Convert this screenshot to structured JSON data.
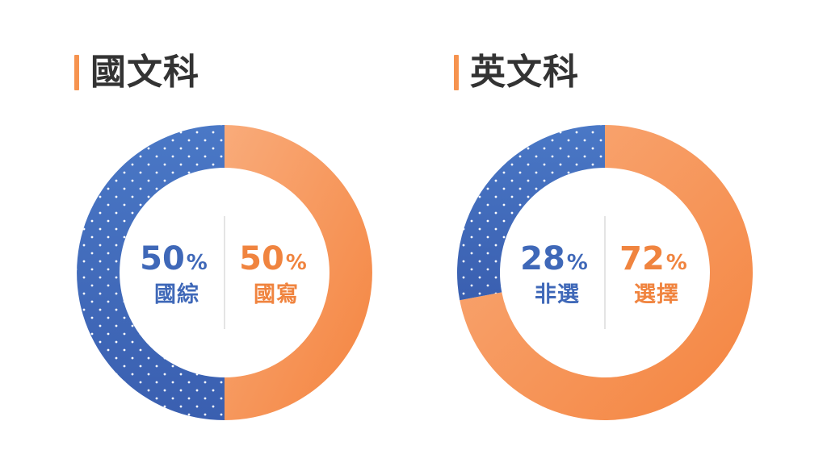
{
  "chart_data": [
    {
      "type": "pie",
      "title": "國文科",
      "series": [
        {
          "name": "國綜",
          "value": 50,
          "label": "50",
          "color": "#3f68b8"
        },
        {
          "name": "國寫",
          "value": 50,
          "label": "50",
          "color": "#f6934f"
        }
      ],
      "unit": "%"
    },
    {
      "type": "pie",
      "title": "英文科",
      "series": [
        {
          "name": "非選",
          "value": 28,
          "label": "28",
          "color": "#3f68b8"
        },
        {
          "name": "選擇",
          "value": 72,
          "label": "72",
          "color": "#f6934f"
        }
      ],
      "unit": "%"
    }
  ],
  "colors": {
    "accent_bar": "#f6934f",
    "title_text": "#333333",
    "divider": "#c8c8c8"
  }
}
